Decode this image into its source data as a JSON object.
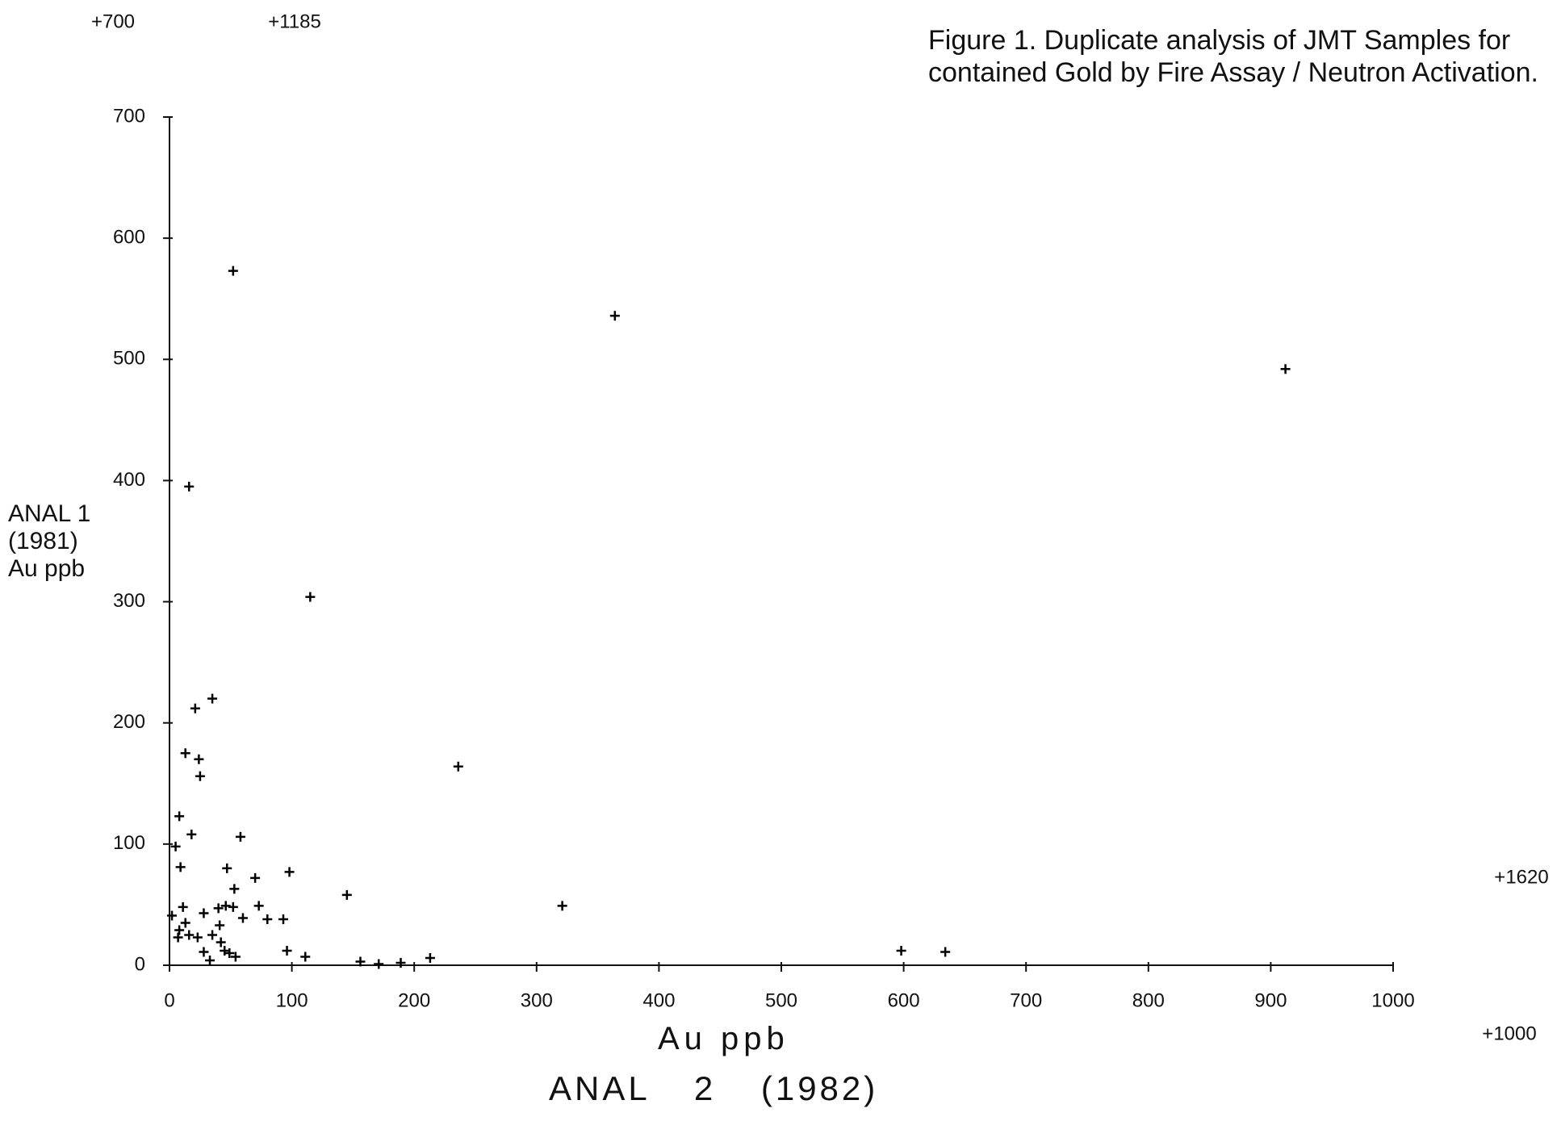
{
  "chart_data": {
    "type": "scatter",
    "title": "Figure 1. Duplicate analysis of JMT Samples for contained Gold by Fire Assay / Neutron Activation.",
    "ylabel": "ANAL 1 (1981) Au ppb",
    "xlabel": "Au ppb",
    "xlabel_secondary": "ANAL 2 (1982)",
    "annotations": [
      "+700",
      "+1185",
      "+1620",
      "+1000"
    ],
    "color": "#000000",
    "x": [
      52,
      364,
      912,
      16,
      115,
      21,
      35,
      13,
      24,
      25,
      236,
      8,
      18,
      5,
      58,
      9,
      47,
      70,
      98,
      145,
      321,
      53,
      11,
      2,
      28,
      40,
      46,
      52,
      73,
      60,
      80,
      93,
      13,
      8,
      16,
      7,
      23,
      35,
      41,
      42,
      45,
      49,
      54,
      33,
      28,
      96,
      111,
      156,
      171,
      189,
      213,
      598,
      634
    ],
    "values": [
      573,
      536,
      492,
      395,
      304,
      212,
      220,
      175,
      170,
      156,
      164,
      123,
      108,
      98,
      106,
      81,
      80,
      72,
      77,
      58,
      49,
      63,
      48,
      41,
      43,
      47,
      49,
      48,
      49,
      39,
      38,
      38,
      35,
      29,
      25,
      23,
      23,
      25,
      33,
      19,
      12,
      10,
      7,
      4,
      11,
      12,
      7,
      3,
      1,
      2,
      6,
      12,
      11
    ],
    "xlim": [
      0,
      1000
    ],
    "ylim": [
      0,
      700
    ],
    "xticks": [
      0,
      100,
      200,
      300,
      400,
      500,
      600,
      700,
      800,
      900,
      1000
    ],
    "yticks": [
      0,
      100,
      200,
      300,
      400,
      500,
      600,
      700
    ]
  }
}
